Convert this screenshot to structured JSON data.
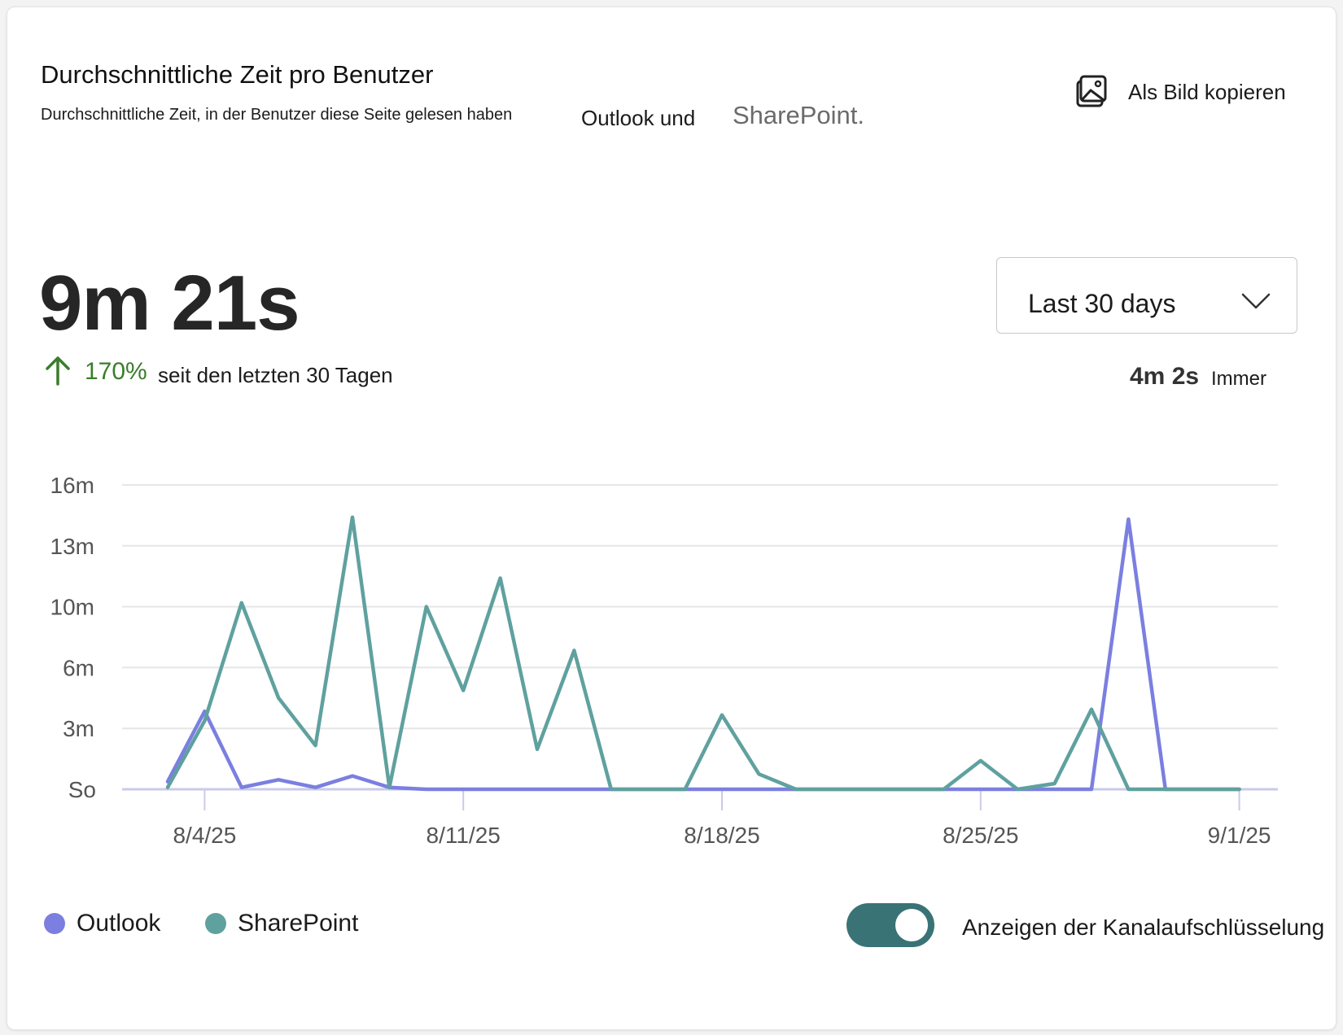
{
  "header": {
    "title": "Durchschnittliche Zeit pro Benutzer",
    "subtitle": "Durchschnittliche Zeit, in der Benutzer diese Seite gelesen haben",
    "subtitle_outlook": "Outlook und",
    "subtitle_sharepoint": "SharePoint.",
    "copy_label": "Als Bild kopieren",
    "copy_icon": "image-icon"
  },
  "summary": {
    "value": "9m 21s",
    "change_pct": "170%",
    "change_text": "seit den letzten 30 Tagen",
    "trend_icon": "arrow-up-icon",
    "alltime_value": "4m 2s",
    "alltime_label": "Immer"
  },
  "period_select": {
    "selected": "Last 30 days",
    "icon": "chevron-down-icon"
  },
  "toggle": {
    "label": "Anzeigen der Kanalaufschlüsselung",
    "on": true
  },
  "colors": {
    "outlook": "#7b7fe0",
    "sharepoint": "#5fa19f",
    "toggle_bg": "#3a7375",
    "trend_green": "#3a7d2c"
  },
  "chart_data": {
    "type": "line",
    "y_tick_labels": [
      "So",
      "3m",
      "6m",
      "10m",
      "13m",
      "16m"
    ],
    "y_tick_minutes": [
      0,
      3.2,
      6.4,
      9.6,
      12.8,
      16
    ],
    "ylim": [
      0,
      16
    ],
    "x_tick_labels": [
      "8/4/25",
      "8/11/25",
      "8/18/25",
      "8/25/25",
      "9/1/25"
    ],
    "x_tick_dates": [
      "2025-08-04",
      "2025-08-11",
      "2025-08-18",
      "2025-08-25",
      "2025-09-01"
    ],
    "x": [
      "2025-08-03",
      "2025-08-04",
      "2025-08-05",
      "2025-08-06",
      "2025-08-07",
      "2025-08-08",
      "2025-08-09",
      "2025-08-10",
      "2025-08-11",
      "2025-08-12",
      "2025-08-13",
      "2025-08-14",
      "2025-08-15",
      "2025-08-16",
      "2025-08-17",
      "2025-08-18",
      "2025-08-19",
      "2025-08-20",
      "2025-08-21",
      "2025-08-22",
      "2025-08-23",
      "2025-08-24",
      "2025-08-25",
      "2025-08-26",
      "2025-08-27",
      "2025-08-28",
      "2025-08-29",
      "2025-08-30",
      "2025-08-31",
      "2025-09-01"
    ],
    "series": [
      {
        "name": "Outlook",
        "color": "#7b7fe0",
        "values": [
          0.4,
          4.1,
          0.1,
          0.5,
          0.1,
          0.7,
          0.1,
          0,
          0,
          0,
          0,
          0,
          0,
          0,
          0,
          0,
          0,
          0,
          0,
          0,
          0,
          0,
          0,
          0,
          0,
          0,
          14.2,
          0,
          0,
          0
        ]
      },
      {
        "name": "SharePoint",
        "color": "#5fa19f",
        "values": [
          0.1,
          3.6,
          9.8,
          4.8,
          2.3,
          14.3,
          0.1,
          9.6,
          5.2,
          11.1,
          2.1,
          7.3,
          0,
          0,
          0,
          3.9,
          0.8,
          0,
          0,
          0,
          0,
          0,
          1.5,
          0,
          0.3,
          4.2,
          0,
          0,
          0,
          0
        ]
      }
    ],
    "legend_position": "bottom-left",
    "grid": true
  }
}
